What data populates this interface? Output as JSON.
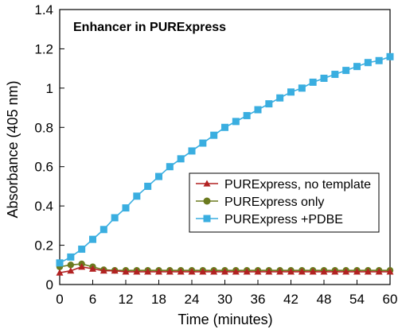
{
  "chart_data": {
    "type": "line",
    "title": "Enhancer in PURExpress",
    "xlabel": "Time (minutes)",
    "ylabel": "Absorbance (405 nm)",
    "xlim": [
      0,
      60
    ],
    "ylim": [
      0,
      1.4
    ],
    "xticks": [
      0,
      6,
      12,
      18,
      24,
      30,
      36,
      42,
      48,
      54,
      60
    ],
    "yticks": [
      0,
      0.2,
      0.4,
      0.6,
      0.8,
      1,
      1.2,
      1.4
    ],
    "ytick_labels": [
      "0",
      "0.2",
      "0.4",
      "0.6",
      "0.8",
      "1",
      "1.2",
      "1.4"
    ],
    "grid": false,
    "legend_position": "center-right",
    "series": [
      {
        "name": "PURExpress, no template",
        "marker": "triangle",
        "color": "#b22222",
        "x": [
          0,
          2,
          4,
          6,
          8,
          10,
          12,
          14,
          16,
          18,
          20,
          22,
          24,
          26,
          28,
          30,
          32,
          34,
          36,
          38,
          40,
          42,
          44,
          46,
          48,
          50,
          52,
          54,
          56,
          58,
          60
        ],
        "y": [
          0.06,
          0.07,
          0.09,
          0.08,
          0.07,
          0.07,
          0.065,
          0.065,
          0.065,
          0.065,
          0.065,
          0.065,
          0.065,
          0.065,
          0.065,
          0.065,
          0.065,
          0.065,
          0.065,
          0.065,
          0.065,
          0.065,
          0.065,
          0.065,
          0.065,
          0.065,
          0.065,
          0.065,
          0.065,
          0.065,
          0.065
        ]
      },
      {
        "name": "PURExpress only",
        "marker": "circle",
        "color": "#6b7a1f",
        "x": [
          0,
          2,
          4,
          6,
          8,
          10,
          12,
          14,
          16,
          18,
          20,
          22,
          24,
          26,
          28,
          30,
          32,
          34,
          36,
          38,
          40,
          42,
          44,
          46,
          48,
          50,
          52,
          54,
          56,
          58,
          60
        ],
        "y": [
          0.09,
          0.1,
          0.105,
          0.09,
          0.075,
          0.072,
          0.072,
          0.072,
          0.072,
          0.072,
          0.072,
          0.072,
          0.072,
          0.072,
          0.072,
          0.072,
          0.072,
          0.072,
          0.072,
          0.072,
          0.072,
          0.072,
          0.072,
          0.072,
          0.072,
          0.072,
          0.072,
          0.072,
          0.072,
          0.072,
          0.072
        ]
      },
      {
        "name": "PURExpress +PDBE",
        "marker": "square",
        "color": "#3aaee0",
        "x": [
          0,
          2,
          4,
          6,
          8,
          10,
          12,
          14,
          16,
          18,
          20,
          22,
          24,
          26,
          28,
          30,
          32,
          34,
          36,
          38,
          40,
          42,
          44,
          46,
          48,
          50,
          52,
          54,
          56,
          58,
          60
        ],
        "y": [
          0.11,
          0.14,
          0.18,
          0.23,
          0.28,
          0.34,
          0.39,
          0.45,
          0.5,
          0.55,
          0.6,
          0.64,
          0.68,
          0.72,
          0.76,
          0.8,
          0.83,
          0.86,
          0.89,
          0.92,
          0.95,
          0.98,
          1.0,
          1.03,
          1.05,
          1.07,
          1.09,
          1.11,
          1.13,
          1.14,
          1.16
        ]
      }
    ]
  }
}
